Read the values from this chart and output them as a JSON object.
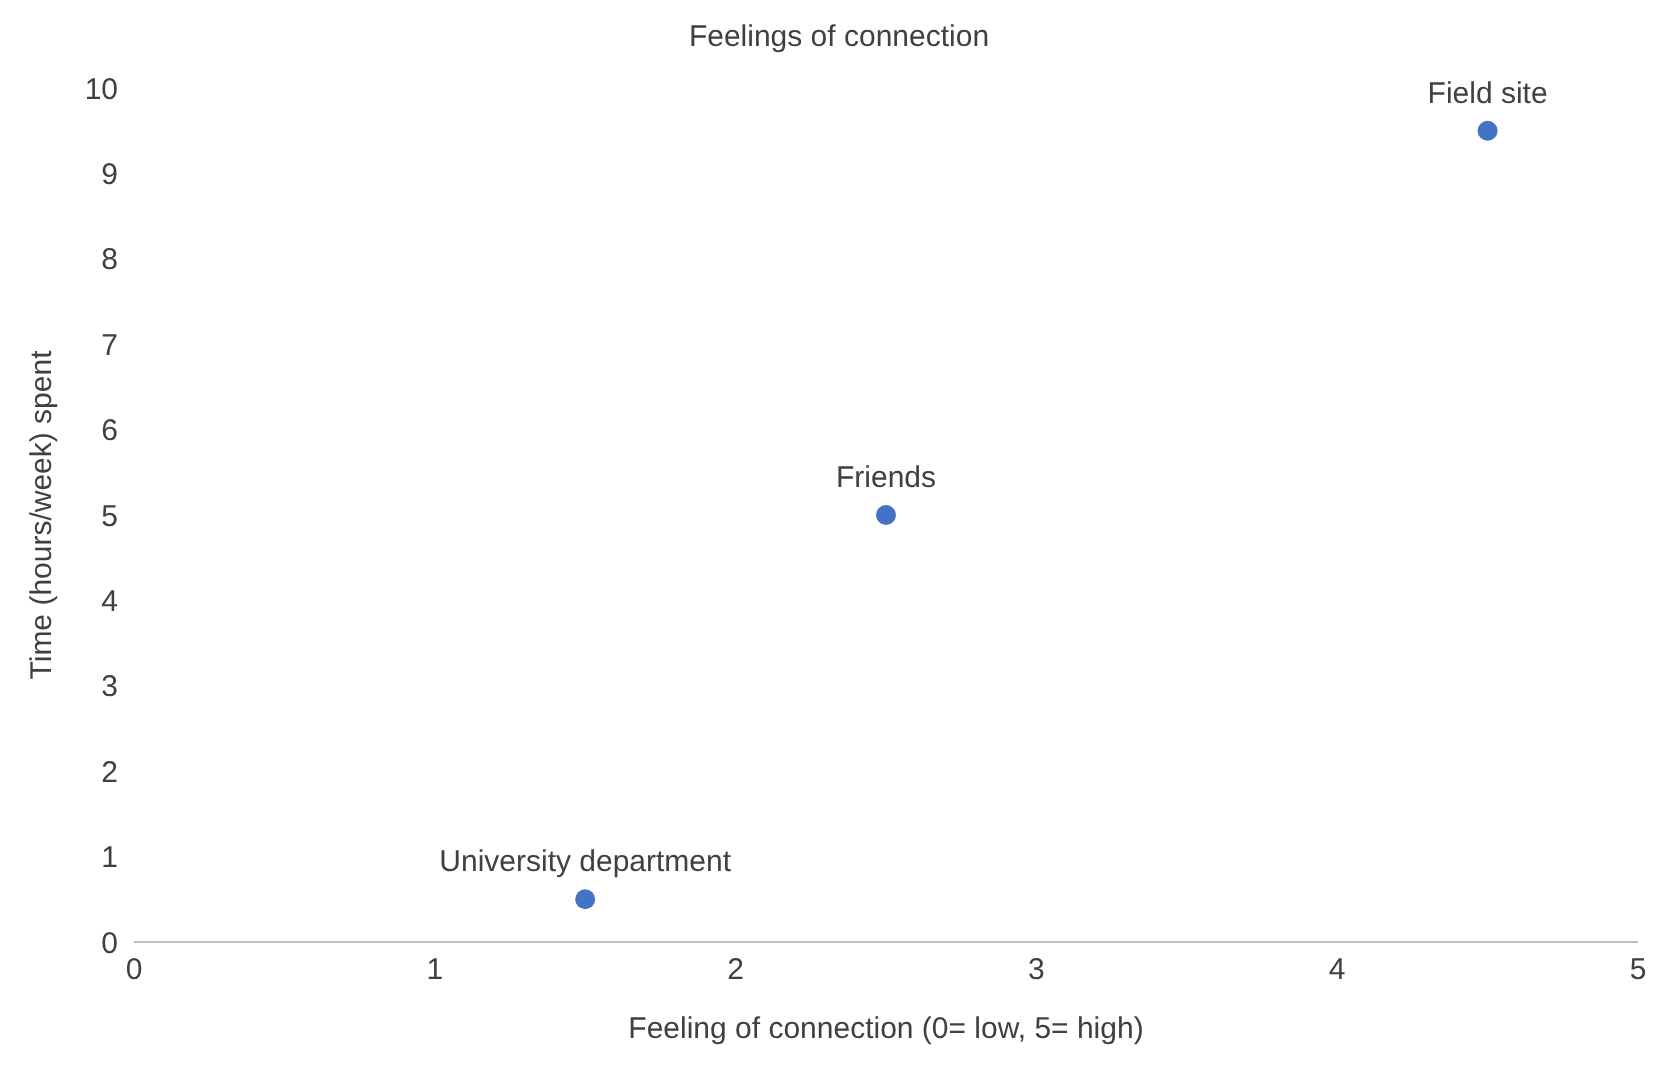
{
  "chart_data": {
    "type": "scatter",
    "title": "Feelings of connection",
    "xlabel": "Feeling of connection (0= low, 5= high)",
    "ylabel": "Time (hours/week) spent",
    "x": [
      1.5,
      2.5,
      4.5
    ],
    "series": [
      {
        "color": "#4472c4",
        "values": [
          0.5,
          5,
          9.5
        ]
      }
    ],
    "xlim": [
      0,
      5
    ],
    "xticks": [
      0,
      1,
      2,
      3,
      4,
      5
    ],
    "ylim": [
      0,
      10
    ],
    "yticks": [
      0,
      1,
      2,
      3,
      4,
      5,
      6,
      7,
      8,
      9,
      10
    ],
    "grid": false,
    "legend": false,
    "marker": "circle",
    "annotations": [
      {
        "text": "University department",
        "x": 1.5,
        "y": 0.5
      },
      {
        "text": "Friends",
        "x": 2.5,
        "y": 5
      },
      {
        "text": "Field site",
        "x": 4.5,
        "y": 9.5
      }
    ]
  }
}
